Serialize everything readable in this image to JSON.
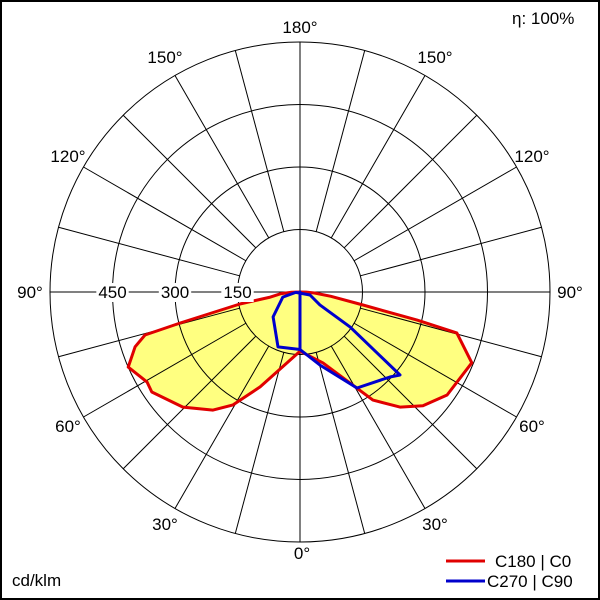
{
  "chart_data": {
    "type": "polar",
    "units_label": "cd/klm",
    "efficiency_label": "η: 100%",
    "radial_ticks": [
      150,
      300,
      450,
      600
    ],
    "radial_tick_labels": [
      "150",
      "300",
      "450"
    ],
    "rmax": 600,
    "angle_labels": [
      {
        "angle": 180,
        "text": "180°"
      },
      {
        "angle": 150,
        "text": "150°"
      },
      {
        "angle": 120,
        "text": "120°"
      },
      {
        "angle": 90,
        "text": "90°"
      },
      {
        "angle": 60,
        "text": "60°"
      },
      {
        "angle": 30,
        "text": "30°"
      },
      {
        "angle": 0,
        "text": "0°"
      }
    ],
    "series": [
      {
        "name": "C180 | C0",
        "color": "#e00000",
        "fill": "#ffff80",
        "left": [
          [
            88,
            20
          ],
          [
            85,
            45
          ],
          [
            80,
            75
          ],
          [
            78.7,
            147
          ],
          [
            75.5,
            297
          ],
          [
            74.5,
            386
          ],
          [
            71.6,
            417
          ],
          [
            66.4,
            450
          ],
          [
            59.5,
            426
          ],
          [
            56,
            429
          ],
          [
            45.5,
            394
          ],
          [
            36.4,
            352
          ],
          [
            30.7,
            315
          ],
          [
            22.8,
            247
          ],
          [
            0,
            142
          ]
        ],
        "right": [
          [
            0,
            142
          ],
          [
            18,
            179
          ],
          [
            34,
            313
          ],
          [
            41,
            366
          ],
          [
            47.2,
            402
          ],
          [
            55,
            431
          ],
          [
            67.6,
            446
          ],
          [
            75.4,
            389
          ],
          [
            76.5,
            289
          ],
          [
            78.5,
            150
          ],
          [
            82,
            75
          ],
          [
            86,
            35
          ],
          [
            89,
            15
          ]
        ]
      },
      {
        "name": "C270 | C90",
        "color": "#0000cc",
        "left": [
          [
            0,
            138
          ],
          [
            21.8,
            142
          ],
          [
            47.2,
            88
          ],
          [
            73.6,
            43
          ],
          [
            85,
            10
          ]
        ],
        "right": [
          [
            73,
            25
          ],
          [
            57,
            57
          ],
          [
            55,
            147
          ],
          [
            50.3,
            312
          ],
          [
            46.6,
            297
          ],
          [
            30.7,
            268
          ],
          [
            15.3,
            182
          ],
          [
            0,
            138
          ]
        ]
      }
    ]
  }
}
